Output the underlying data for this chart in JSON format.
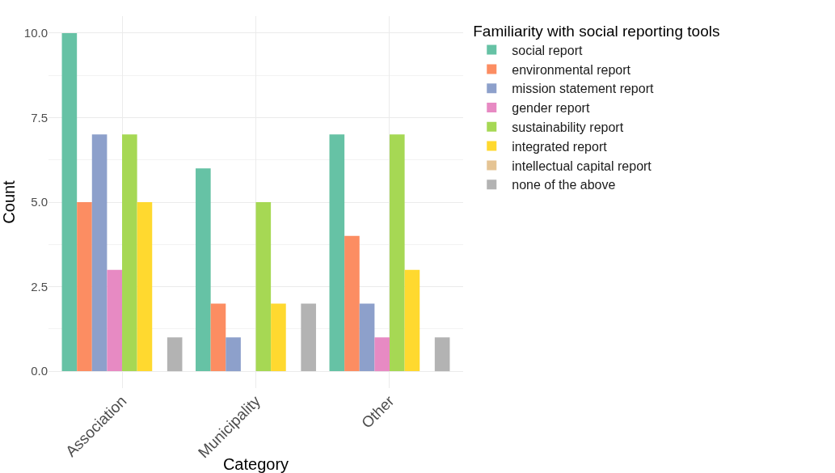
{
  "chart_data": {
    "type": "bar",
    "xlabel": "Category",
    "ylabel": "Count",
    "legend_title": "Familiarity with social reporting tools",
    "categories": [
      "Association",
      "Municipality",
      "Other"
    ],
    "series": [
      {
        "name": "social report",
        "color": "#66c2a5",
        "values": [
          10,
          6,
          7
        ]
      },
      {
        "name": "environmental report",
        "color": "#fc8d62",
        "values": [
          5,
          2,
          4
        ]
      },
      {
        "name": "mission statement report",
        "color": "#8da0cb",
        "values": [
          7,
          1,
          2
        ]
      },
      {
        "name": "gender report",
        "color": "#e78ac3",
        "values": [
          3,
          0,
          1
        ]
      },
      {
        "name": "sustainability report",
        "color": "#a6d854",
        "values": [
          7,
          5,
          7
        ]
      },
      {
        "name": "integrated report",
        "color": "#ffd92f",
        "values": [
          5,
          2,
          3
        ]
      },
      {
        "name": "intellectual capital report",
        "color": "#e5c494",
        "values": [
          0,
          0,
          0
        ]
      },
      {
        "name": "none of the above",
        "color": "#b3b3b3",
        "values": [
          1,
          2,
          1
        ]
      }
    ],
    "ylim": [
      -0.5,
      10.5
    ],
    "yticks": [
      {
        "value": 0,
        "label": "0.0"
      },
      {
        "value": 2.5,
        "label": "2.5"
      },
      {
        "value": 5,
        "label": "5.0"
      },
      {
        "value": 7.5,
        "label": "7.5"
      },
      {
        "value": 10,
        "label": "10.0"
      }
    ],
    "grid": true,
    "legend": "right"
  }
}
